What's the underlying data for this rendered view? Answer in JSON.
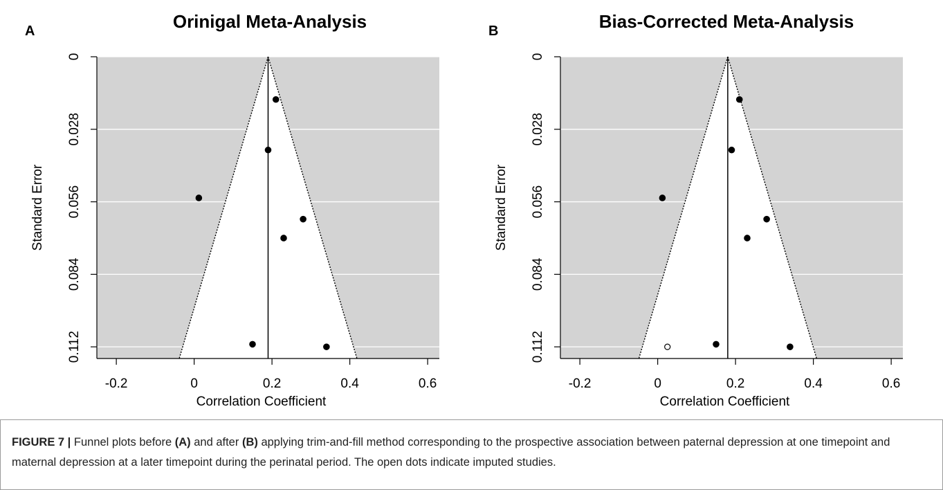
{
  "chart_data": [
    {
      "type": "scatter",
      "panel_label": "A",
      "title": "Orinigal Meta-Analysis",
      "xlabel": "Correlation Coefficient",
      "ylabel": "Standard Error",
      "xlim": [
        -0.25,
        0.63
      ],
      "ylim": [
        0.1165,
        0
      ],
      "x_ticks": [
        -0.2,
        0,
        0.2,
        0.4,
        0.6
      ],
      "x_tick_labels": [
        "-0.2",
        "0",
        "0.2",
        "0.4",
        "0.6"
      ],
      "y_ticks": [
        0,
        0.028,
        0.056,
        0.084,
        0.112
      ],
      "y_tick_labels": [
        "0",
        "0.028",
        "0.056",
        "0.084",
        "0.112"
      ],
      "pooled_estimate": 0.19,
      "grid": "horizontal",
      "observed_points": [
        {
          "x": 0.21,
          "y": 0.0165
        },
        {
          "x": 0.19,
          "y": 0.036
        },
        {
          "x": 0.012,
          "y": 0.0545
        },
        {
          "x": 0.28,
          "y": 0.0627
        },
        {
          "x": 0.23,
          "y": 0.07
        },
        {
          "x": 0.15,
          "y": 0.111
        },
        {
          "x": 0.34,
          "y": 0.112
        }
      ],
      "imputed_points": []
    },
    {
      "type": "scatter",
      "panel_label": "B",
      "title": "Bias-Corrected Meta-Analysis",
      "xlabel": "Correlation Coefficient",
      "ylabel": "Standard Error",
      "xlim": [
        -0.25,
        0.63
      ],
      "ylim": [
        0.1165,
        0
      ],
      "x_ticks": [
        -0.2,
        0,
        0.2,
        0.4,
        0.6
      ],
      "x_tick_labels": [
        "-0.2",
        "0",
        "0.2",
        "0.4",
        "0.6"
      ],
      "y_ticks": [
        0,
        0.028,
        0.056,
        0.084,
        0.112
      ],
      "y_tick_labels": [
        "0",
        "0.028",
        "0.056",
        "0.084",
        "0.112"
      ],
      "pooled_estimate": 0.18,
      "grid": "horizontal",
      "observed_points": [
        {
          "x": 0.21,
          "y": 0.0165
        },
        {
          "x": 0.19,
          "y": 0.036
        },
        {
          "x": 0.012,
          "y": 0.0545
        },
        {
          "x": 0.28,
          "y": 0.0627
        },
        {
          "x": 0.23,
          "y": 0.07
        },
        {
          "x": 0.15,
          "y": 0.111
        },
        {
          "x": 0.34,
          "y": 0.112
        }
      ],
      "imputed_points": [
        {
          "x": 0.025,
          "y": 0.112
        }
      ]
    }
  ],
  "caption": {
    "label": "FIGURE 7 |",
    "t1": " Funnel plots before ",
    "a": "(A)",
    "t2": " and after ",
    "b": "(B)",
    "t3": " applying trim-and-fill method corresponding to the prospective association between paternal depression at one timepoint and maternal depression at a later timepoint during the perinatal period. The open dots indicate imputed studies."
  },
  "colors": {
    "plot_background": "#d3d3d3",
    "funnel_fill": "#ffffff",
    "grid": "#ffffff",
    "point": "#000000"
  }
}
